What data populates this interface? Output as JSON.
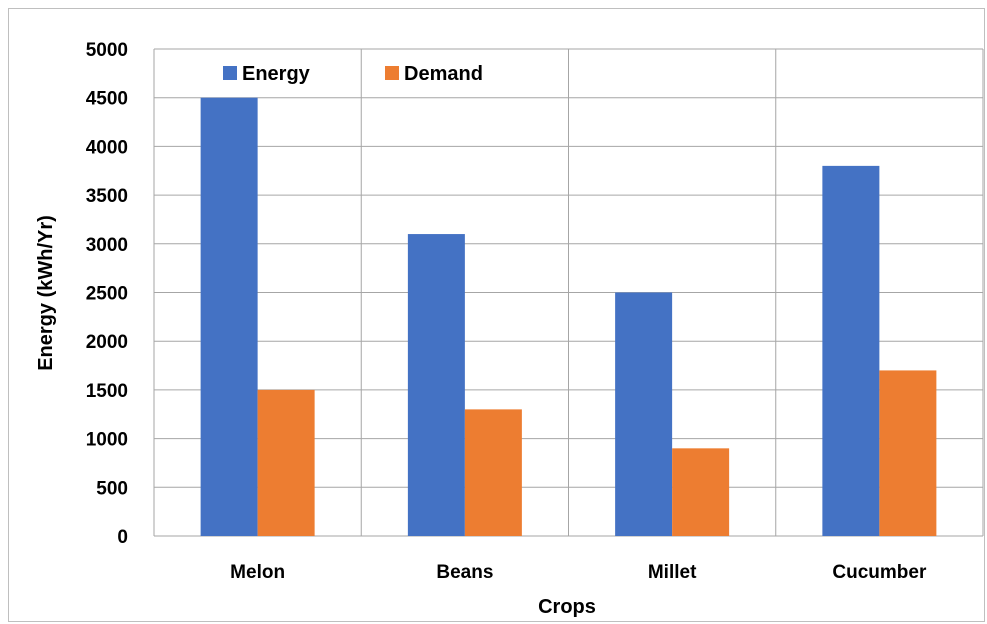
{
  "chart_data": {
    "type": "bar",
    "categories": [
      "Melon",
      "Beans",
      "Millet",
      "Cucumber"
    ],
    "series": [
      {
        "name": "Energy",
        "values": [
          4500,
          3100,
          2500,
          3800
        ],
        "color": "#4472C4"
      },
      {
        "name": "Demand",
        "values": [
          1500,
          1300,
          900,
          1700
        ],
        "color": "#ED7D31"
      }
    ],
    "xlabel": "Crops",
    "ylabel": "Energy (kWh/Yr)",
    "ylim": [
      0,
      5000
    ],
    "yticks": [
      0,
      500,
      1000,
      1500,
      2000,
      2500,
      3000,
      3500,
      4000,
      4500,
      5000
    ],
    "grid": {
      "horizontal": true,
      "vertical": true,
      "color": "#a6a6a6"
    },
    "legend": {
      "position": "top-left"
    }
  }
}
